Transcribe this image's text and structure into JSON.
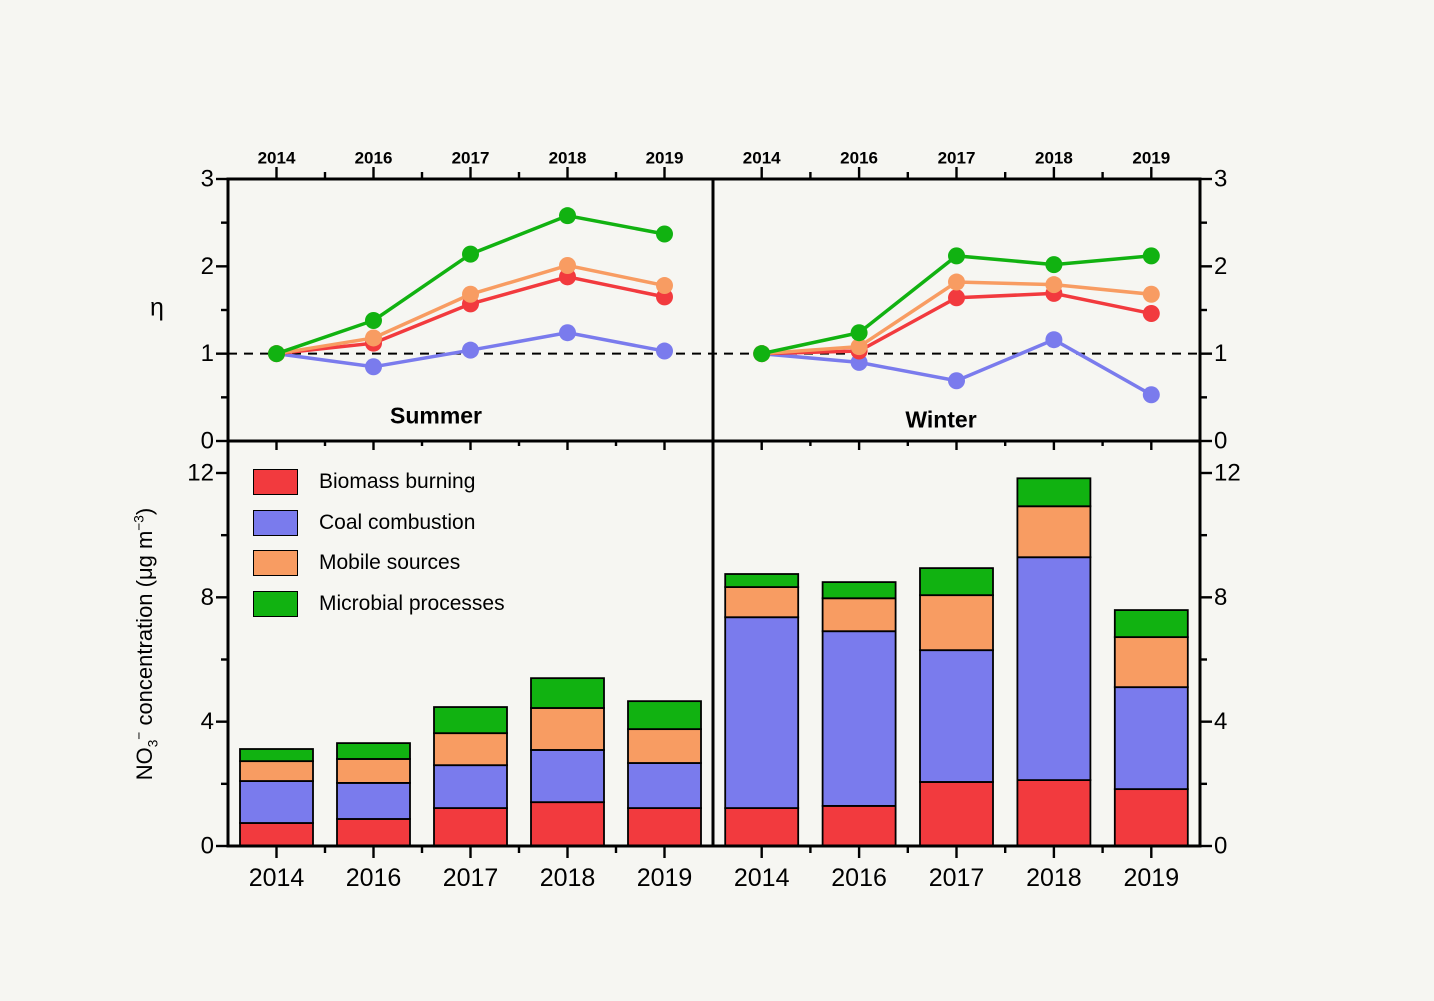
{
  "figure": {
    "background": "#f6f6f2",
    "panel_titles": {
      "left": "Summer",
      "right": "Winter"
    },
    "x_categories": [
      "2014",
      "2016",
      "2017",
      "2018",
      "2019"
    ]
  },
  "axes": {
    "eta_label": "η",
    "no3_label": {
      "base": "NO",
      "sub": "3",
      "sup": "−",
      "mid": " concentration (μg m",
      "exp": "−3",
      "end": ")"
    },
    "top_ylim": [
      0,
      3
    ],
    "top_yticks": [
      0,
      1,
      2,
      3
    ],
    "top_yminor": [
      0.5,
      1.5,
      2.5
    ],
    "bottom_ylim": [
      0,
      13
    ],
    "bottom_yticks": [
      0,
      4,
      8,
      12
    ],
    "bottom_yminor": [
      2,
      6,
      10
    ],
    "reference_value": 1
  },
  "legend": {
    "items": [
      {
        "label": "Biomass burning",
        "color": "#f23a3e"
      },
      {
        "label": "Coal combustion",
        "color": "#7a7bed"
      },
      {
        "label": "Mobile sources",
        "color": "#f89c62"
      },
      {
        "label": "Microbial processes",
        "color": "#11b211"
      }
    ]
  },
  "chart_data": [
    {
      "type": "line",
      "panel": "top-left",
      "title": "Summer",
      "categories": [
        "2014",
        "2016",
        "2017",
        "2018",
        "2019"
      ],
      "ylabel": "η",
      "ylim": [
        0,
        3
      ],
      "reference_line": 1,
      "series": [
        {
          "name": "Coal combustion",
          "color": "#7a7bed",
          "values": [
            1.0,
            0.85,
            1.04,
            1.24,
            1.03
          ]
        },
        {
          "name": "Biomass burning",
          "color": "#f23a3e",
          "values": [
            1.0,
            1.12,
            1.57,
            1.88,
            1.65
          ]
        },
        {
          "name": "Mobile sources",
          "color": "#f89c62",
          "values": [
            1.0,
            1.18,
            1.68,
            2.01,
            1.78
          ]
        },
        {
          "name": "Microbial processes",
          "color": "#11b211",
          "values": [
            1.0,
            1.38,
            2.14,
            2.58,
            2.37
          ]
        }
      ]
    },
    {
      "type": "line",
      "panel": "top-right",
      "title": "Winter",
      "categories": [
        "2014",
        "2016",
        "2017",
        "2018",
        "2019"
      ],
      "ylabel": "η",
      "ylim": [
        0,
        3
      ],
      "reference_line": 1,
      "series": [
        {
          "name": "Coal combustion",
          "color": "#7a7bed",
          "values": [
            1.0,
            0.9,
            0.69,
            1.16,
            0.53
          ]
        },
        {
          "name": "Biomass burning",
          "color": "#f23a3e",
          "values": [
            1.0,
            1.03,
            1.64,
            1.69,
            1.46
          ]
        },
        {
          "name": "Mobile sources",
          "color": "#f89c62",
          "values": [
            1.0,
            1.08,
            1.82,
            1.79,
            1.68
          ]
        },
        {
          "name": "Microbial processes",
          "color": "#11b211",
          "values": [
            1.0,
            1.24,
            2.12,
            2.02,
            2.12
          ]
        }
      ]
    },
    {
      "type": "bar",
      "stacked": true,
      "panel": "bottom-left",
      "title": "Summer",
      "categories": [
        "2014",
        "2016",
        "2017",
        "2018",
        "2019"
      ],
      "ylabel": "NO3− concentration (μg m−3)",
      "ylim": [
        0,
        13
      ],
      "series": [
        {
          "name": "Biomass burning",
          "color": "#f23a3e",
          "values": [
            0.74,
            0.87,
            1.22,
            1.41,
            1.22
          ]
        },
        {
          "name": "Coal combustion",
          "color": "#7a7bed",
          "values": [
            1.35,
            1.16,
            1.38,
            1.68,
            1.45
          ]
        },
        {
          "name": "Mobile sources",
          "color": "#f89c62",
          "values": [
            0.64,
            0.77,
            1.03,
            1.35,
            1.09
          ]
        },
        {
          "name": "Microbial processes",
          "color": "#11b211",
          "values": [
            0.39,
            0.51,
            0.84,
            0.96,
            0.9
          ]
        }
      ],
      "totals": [
        3.12,
        3.31,
        4.47,
        5.4,
        4.66
      ]
    },
    {
      "type": "bar",
      "stacked": true,
      "panel": "bottom-right",
      "title": "Winter",
      "categories": [
        "2014",
        "2016",
        "2017",
        "2018",
        "2019"
      ],
      "ylabel": "NO3− concentration (μg m−3)",
      "ylim": [
        0,
        13
      ],
      "series": [
        {
          "name": "Biomass burning",
          "color": "#f23a3e",
          "values": [
            1.22,
            1.29,
            2.06,
            2.12,
            1.83
          ]
        },
        {
          "name": "Coal combustion",
          "color": "#7a7bed",
          "values": [
            6.14,
            5.62,
            4.24,
            7.17,
            3.28
          ]
        },
        {
          "name": "Mobile sources",
          "color": "#f89c62",
          "values": [
            0.97,
            1.06,
            1.77,
            1.64,
            1.61
          ]
        },
        {
          "name": "Microbial processes",
          "color": "#11b211",
          "values": [
            0.42,
            0.52,
            0.87,
            0.9,
            0.87
          ]
        }
      ],
      "totals": [
        8.75,
        8.49,
        8.94,
        11.83,
        7.59
      ]
    }
  ]
}
